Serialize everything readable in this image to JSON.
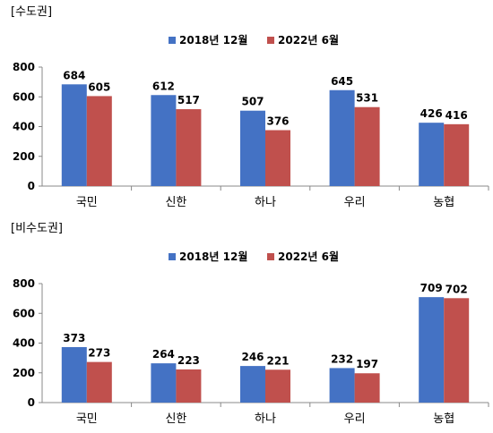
{
  "chart_data": [
    {
      "type": "bar",
      "title": "[수도권]",
      "categories": [
        "국민",
        "신한",
        "하나",
        "우리",
        "농협"
      ],
      "series": [
        {
          "name": "2018년 12월",
          "values": [
            684,
            612,
            507,
            645,
            426
          ],
          "color": "#4472C4"
        },
        {
          "name": "2022년 6월",
          "values": [
            605,
            517,
            376,
            531,
            416
          ],
          "color": "#C0504D"
        }
      ],
      "yticks": [
        0,
        200,
        400,
        600,
        800
      ],
      "ylim": [
        0,
        800
      ],
      "legend": "top-center",
      "grid": false
    },
    {
      "type": "bar",
      "title": "[비수도권]",
      "categories": [
        "국민",
        "신한",
        "하나",
        "우리",
        "농협"
      ],
      "series": [
        {
          "name": "2018년 12월",
          "values": [
            373,
            264,
            246,
            232,
            709
          ],
          "color": "#4472C4"
        },
        {
          "name": "2022년 6월",
          "values": [
            273,
            223,
            221,
            197,
            702
          ],
          "color": "#C0504D"
        }
      ],
      "yticks": [
        0,
        200,
        400,
        600,
        800
      ],
      "ylim": [
        0,
        800
      ],
      "legend": "top-center",
      "grid": false
    }
  ]
}
